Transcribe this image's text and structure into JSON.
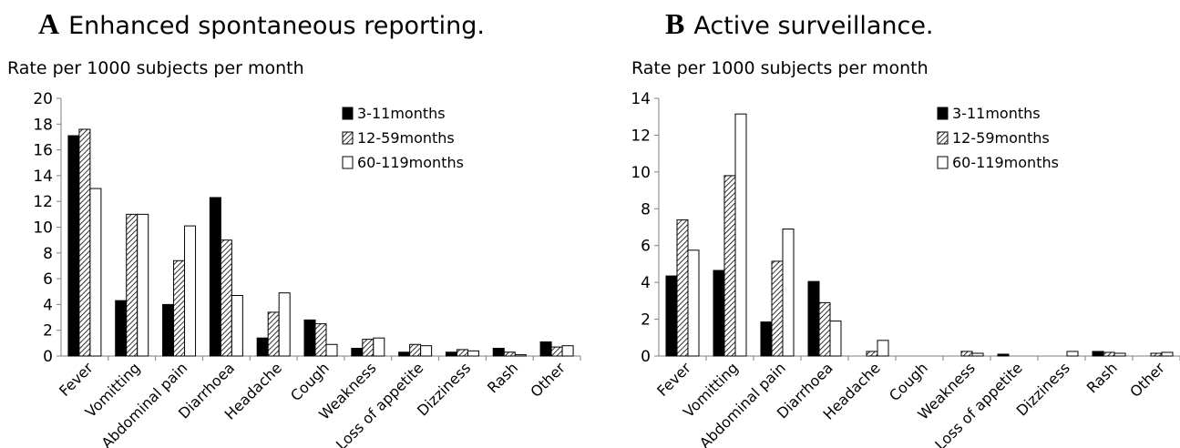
{
  "chart_data": [
    {
      "type": "bar",
      "panel_letter": "A",
      "title": "Enhanced spontaneous reporting.",
      "ylabel": "Rate per 1000 subjects per month",
      "xlabel": "",
      "ylim": [
        0,
        20
      ],
      "yticks": [
        0,
        2,
        4,
        6,
        8,
        10,
        12,
        14,
        16,
        18,
        20
      ],
      "categories": [
        "Fever",
        "Vomitting",
        "Abdominal pain",
        "Diarrhoea",
        "Headache",
        "Cough",
        "Weakness",
        "Loss of appetite",
        "Dizziness",
        "Rash",
        "Other"
      ],
      "series": [
        {
          "name": "3-11months",
          "fill": "solid",
          "values": [
            17.1,
            4.3,
            4.0,
            12.3,
            1.4,
            2.8,
            0.6,
            0.3,
            0.3,
            0.6,
            1.1
          ]
        },
        {
          "name": "12-59months",
          "fill": "hatched",
          "values": [
            17.6,
            11.0,
            7.4,
            9.0,
            3.4,
            2.5,
            1.3,
            0.9,
            0.5,
            0.3,
            0.7
          ]
        },
        {
          "name": "60-119months",
          "fill": "white",
          "values": [
            13.0,
            11.0,
            10.1,
            4.7,
            4.9,
            0.9,
            1.4,
            0.8,
            0.4,
            0.1,
            0.8
          ]
        }
      ],
      "legend_position": "top-right",
      "grid": false
    },
    {
      "type": "bar",
      "panel_letter": "B",
      "title": "Active surveillance.",
      "ylabel": "Rate per 1000 subjects per month",
      "xlabel": "",
      "ylim": [
        0,
        14
      ],
      "yticks": [
        0,
        2,
        4,
        6,
        8,
        10,
        12,
        14
      ],
      "categories": [
        "Fever",
        "Vomitting",
        "Abdominal pain",
        "Diarrhoea",
        "Headache",
        "Cough",
        "Weakness",
        "Loss of appetite",
        "Dizziness",
        "Rash",
        "Other"
      ],
      "series": [
        {
          "name": "3-11months",
          "fill": "solid",
          "values": [
            4.35,
            4.65,
            1.85,
            4.05,
            0,
            0,
            0,
            0.1,
            0,
            0.25,
            0
          ]
        },
        {
          "name": "12-59months",
          "fill": "hatched",
          "values": [
            7.4,
            9.8,
            5.15,
            2.9,
            0.25,
            0,
            0.25,
            0,
            0,
            0.2,
            0.15
          ]
        },
        {
          "name": "60-119months",
          "fill": "white",
          "values": [
            5.75,
            13.15,
            6.9,
            1.9,
            0.85,
            0,
            0.15,
            0,
            0.25,
            0.15,
            0.2
          ]
        }
      ],
      "legend_position": "top-right",
      "grid": false
    }
  ]
}
